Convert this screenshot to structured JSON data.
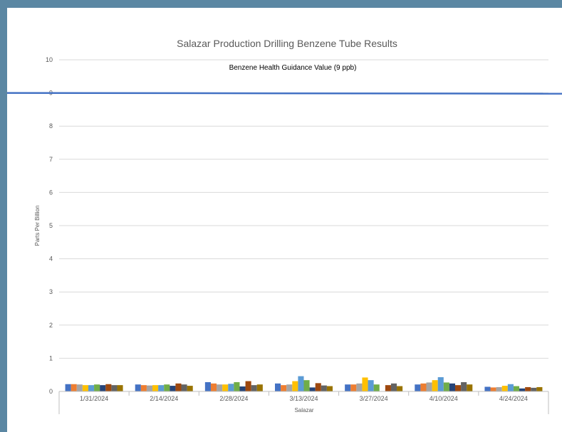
{
  "chart_data": {
    "type": "bar",
    "title": "Salazar Production Drilling Benzene Tube Results",
    "ylabel": "Parts Per Billion",
    "xlabel": "Salazar",
    "ylim": [
      0,
      10
    ],
    "yticks": [
      0,
      1,
      2,
      3,
      4,
      5,
      6,
      7,
      8,
      9,
      10
    ],
    "gridlines": true,
    "legend": "none",
    "categories": [
      "1/31/2024",
      "2/14/2024",
      "2/28/2024",
      "3/13/2024",
      "3/27/2024",
      "4/10/2024",
      "4/24/2024"
    ],
    "series_colors": [
      "#4472c4",
      "#ed7d31",
      "#a5a5a5",
      "#ffc000",
      "#5b9bd5",
      "#70ad47",
      "#264478",
      "#9e480e",
      "#636363",
      "#997300"
    ],
    "values": [
      [
        0.22,
        0.22,
        0.21,
        0.19,
        0.19,
        0.21,
        0.19,
        0.22,
        0.19,
        0.19
      ],
      [
        0.21,
        0.19,
        0.18,
        0.19,
        0.19,
        0.21,
        0.17,
        0.24,
        0.21,
        0.17
      ],
      [
        0.28,
        0.24,
        0.21,
        0.21,
        0.23,
        0.28,
        0.15,
        0.31,
        0.19,
        0.21
      ],
      [
        0.24,
        0.19,
        0.21,
        0.31,
        0.46,
        0.34,
        0.12,
        0.25,
        0.18,
        0.16
      ],
      [
        0.21,
        0.21,
        0.24,
        0.42,
        0.34,
        0.21,
        0,
        0.19,
        0.24,
        0.16
      ],
      [
        0.21,
        0.24,
        0.27,
        0.34,
        0.43,
        0.27,
        0.24,
        0.19,
        0.28,
        0.21
      ],
      [
        0.14,
        0.12,
        0.13,
        0.17,
        0.22,
        0.16,
        0.09,
        0.13,
        0.11,
        0.13
      ]
    ],
    "guidance": {
      "label": "Benzene Health Guidance Value (9 ppb)",
      "value": 9,
      "color": "#4472c4"
    }
  }
}
